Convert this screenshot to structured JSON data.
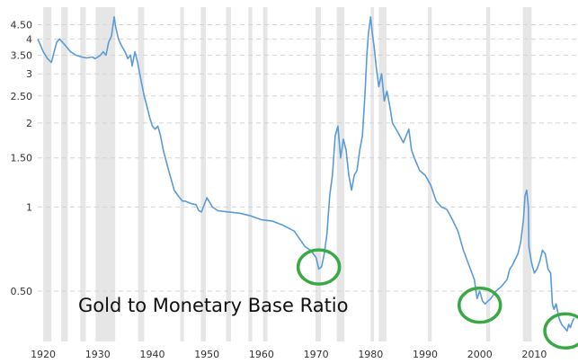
{
  "chart_data": {
    "type": "line",
    "title": "",
    "xlabel": "",
    "ylabel": "",
    "y_scale": "log",
    "xlim": [
      1919,
      2018
    ],
    "ylim": [
      0.33,
      5.2
    ],
    "grid": "horizontal-dashed",
    "x_ticks": [
      1920,
      1930,
      1940,
      1950,
      1960,
      1970,
      1980,
      1990,
      2000,
      2010
    ],
    "y_ticks": [
      {
        "value": 0.5,
        "label": "0.50"
      },
      {
        "value": 1,
        "label": "1"
      },
      {
        "value": 1.5,
        "label": "1.50"
      },
      {
        "value": 2,
        "label": "2"
      },
      {
        "value": 2.5,
        "label": "2.50"
      },
      {
        "value": 3,
        "label": "3"
      },
      {
        "value": 3.5,
        "label": "3.50"
      },
      {
        "value": 4,
        "label": "4"
      },
      {
        "value": 4.5,
        "label": "4.50"
      }
    ],
    "annotation": "Gold to Monetary Base Ratio",
    "recessions": [
      [
        1920.0,
        1921.5
      ],
      [
        1923.3,
        1924.5
      ],
      [
        1926.8,
        1927.8
      ],
      [
        1929.6,
        1933.2
      ],
      [
        1937.4,
        1938.5
      ],
      [
        1945.1,
        1945.8
      ],
      [
        1948.9,
        1949.8
      ],
      [
        1953.5,
        1954.4
      ],
      [
        1957.6,
        1958.3
      ],
      [
        1960.3,
        1961.1
      ],
      [
        1969.9,
        1970.9
      ],
      [
        1973.8,
        1975.2
      ],
      [
        1980.0,
        1980.6
      ],
      [
        1981.5,
        1982.9
      ],
      [
        1990.5,
        1991.2
      ],
      [
        2001.2,
        2001.9
      ],
      [
        2007.9,
        2009.5
      ]
    ],
    "highlights": [
      {
        "x": 1970.5,
        "y": 0.61,
        "color": "#3aa845"
      },
      {
        "x": 2000.0,
        "y": 0.445,
        "color": "#3aa845"
      },
      {
        "x": 2015.7,
        "y": 0.36,
        "color": "#3aa845"
      }
    ],
    "series": [
      {
        "color": "#5b9bd5",
        "x": [
          1919,
          1919.5,
          1920,
          1920.8,
          1921.5,
          1922,
          1922.5,
          1923,
          1923.5,
          1924,
          1925,
          1926,
          1927,
          1928,
          1929,
          1929.5,
          1930,
          1930.5,
          1931,
          1931.5,
          1932,
          1932.5,
          1933,
          1933.3,
          1933.8,
          1934.3,
          1935,
          1935.5,
          1936,
          1936.3,
          1936.8,
          1937.3,
          1938,
          1938.5,
          1939,
          1939.5,
          1940,
          1940.5,
          1941,
          1941.5,
          1942,
          1943,
          1944,
          1945,
          1945.5,
          1946,
          1947,
          1948,
          1948.5,
          1949,
          1950,
          1951,
          1952,
          1954,
          1956,
          1958,
          1960,
          1962,
          1964,
          1966,
          1968,
          1969,
          1970,
          1970.5,
          1971,
          1971.5,
          1972,
          1972.5,
          1973,
          1973.5,
          1974,
          1974.5,
          1975,
          1975.5,
          1976,
          1976.5,
          1977,
          1977.5,
          1978,
          1978.5,
          1979,
          1979.3,
          1979.6,
          1980,
          1980.3,
          1980.6,
          1981,
          1981.5,
          1982,
          1982.5,
          1983,
          1983.5,
          1984,
          1985,
          1986,
          1986.5,
          1987,
          1987.5,
          1988,
          1989,
          1990,
          1991,
          1992,
          1993,
          1994,
          1995,
          1996,
          1997,
          1998,
          1999,
          1999.5,
          2000,
          2000.5,
          2001,
          2001.5,
          2002,
          2003,
          2004,
          2005,
          2005.5,
          2006,
          2006.5,
          2007,
          2007.5,
          2008,
          2008.3,
          2008.6,
          2008.9,
          2009,
          2009.5,
          2010,
          2010.5,
          2011,
          2011.5,
          2012,
          2012.5,
          2013,
          2013.3,
          2013.6,
          2014,
          2014.5,
          2015,
          2015.5,
          2016,
          2016.3,
          2016.6,
          2017,
          2017.3
        ],
        "values": [
          4.0,
          3.8,
          3.6,
          3.4,
          3.3,
          3.6,
          3.9,
          4.0,
          3.9,
          3.8,
          3.6,
          3.5,
          3.45,
          3.42,
          3.45,
          3.4,
          3.45,
          3.5,
          3.6,
          3.5,
          3.9,
          4.1,
          4.8,
          4.4,
          4.0,
          3.8,
          3.6,
          3.4,
          3.5,
          3.2,
          3.6,
          3.3,
          2.8,
          2.5,
          2.3,
          2.1,
          1.95,
          1.9,
          1.95,
          1.8,
          1.6,
          1.35,
          1.15,
          1.08,
          1.05,
          1.05,
          1.03,
          1.02,
          0.97,
          0.96,
          1.08,
          1.0,
          0.97,
          0.96,
          0.95,
          0.93,
          0.9,
          0.89,
          0.86,
          0.82,
          0.72,
          0.7,
          0.66,
          0.6,
          0.61,
          0.68,
          0.8,
          1.1,
          1.3,
          1.8,
          1.95,
          1.5,
          1.75,
          1.6,
          1.3,
          1.15,
          1.3,
          1.35,
          1.6,
          1.8,
          2.6,
          3.5,
          4.2,
          4.8,
          4.2,
          3.8,
          3.2,
          2.7,
          3.0,
          2.4,
          2.6,
          2.3,
          2.0,
          1.85,
          1.7,
          1.8,
          1.9,
          1.6,
          1.5,
          1.35,
          1.3,
          1.2,
          1.05,
          1.0,
          0.98,
          0.9,
          0.82,
          0.7,
          0.62,
          0.55,
          0.47,
          0.5,
          0.46,
          0.45,
          0.46,
          0.47,
          0.5,
          0.52,
          0.55,
          0.6,
          0.62,
          0.65,
          0.68,
          0.75,
          0.9,
          1.1,
          1.15,
          1.0,
          0.72,
          0.63,
          0.58,
          0.6,
          0.64,
          0.7,
          0.68,
          0.6,
          0.58,
          0.45,
          0.43,
          0.45,
          0.4,
          0.38,
          0.37,
          0.36,
          0.38,
          0.37,
          0.39,
          0.4
        ]
      }
    ]
  }
}
